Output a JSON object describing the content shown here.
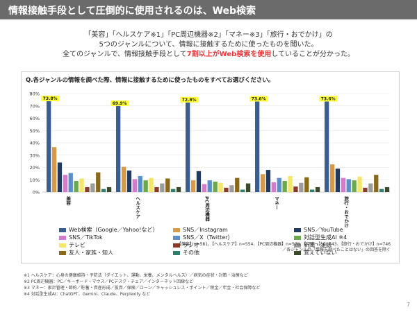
{
  "title": "情報接触手段として圧倒的に使用されるのは、Web検索",
  "intro": {
    "line1": "「美容」「ヘルスケア※1」「PC周辺機器※2」「マネー※3」「旅行・おでかけ」の",
    "line2": "5つのジャンルについて、情報に接触するために使ったものを聞いた。",
    "line3_pre": "全てのジャンルで、情報接触手段として",
    "line3_highlight": "7割以上がWeb検索を使用",
    "line3_post": "していることが分かった。"
  },
  "question": "Q.各ジャンルの情報を調べた際、情報に接触するために使ったものをすべてお選びください。",
  "chart_data": {
    "type": "bar",
    "categories": [
      "美容",
      "ヘルスケア",
      "PC周辺機器",
      "マネー",
      "旅行・おでかけ"
    ],
    "ylim": [
      0,
      80
    ],
    "yticks": [
      "0%",
      "10%",
      "20%",
      "30%",
      "40%",
      "50%",
      "60%",
      "70%",
      "80%"
    ],
    "grid": true,
    "legend_position": "bottom",
    "series": [
      {
        "name": "Web検索（Google／Yahoo!など）",
        "color": "#3a5f8f",
        "values": [
          73.8,
          69.9,
          72.8,
          73.6,
          73.6
        ]
      },
      {
        "name": "SNS／Instagram",
        "color": "#d79a4a",
        "values": [
          36.5,
          20.5,
          9.5,
          14.5,
          22.5
        ]
      },
      {
        "name": "SNS／YouTube",
        "color": "#233a63",
        "values": [
          24,
          17.5,
          17,
          18,
          19
        ]
      },
      {
        "name": "SNS／TikTok",
        "color": "#d67ad0",
        "values": [
          14,
          10.5,
          6.5,
          8,
          11.5
        ]
      },
      {
        "name": "SNS／X（Twitter）",
        "color": "#5b8fc9",
        "values": [
          15.5,
          13,
          9.5,
          11.5,
          10.5
        ]
      },
      {
        "name": "対話型生成AI ※4",
        "color": "#6aaa4a",
        "values": [
          9,
          9.5,
          8.5,
          9,
          9.5
        ]
      },
      {
        "name": "テレビ",
        "color": "#f5e66a",
        "values": [
          11,
          11.5,
          7.5,
          13,
          12.5
        ]
      },
      {
        "name": "ラジオ",
        "color": "#8a3b2a",
        "values": [
          4,
          4,
          3.5,
          4.5,
          3.5
        ]
      },
      {
        "name": "新聞・雑誌",
        "color": "#9c9c9c",
        "values": [
          7,
          7,
          5.5,
          7.5,
          7
        ]
      },
      {
        "name": "友人・家族・知人",
        "color": "#8a6a1a",
        "values": [
          16,
          11,
          11.5,
          12,
          14
        ]
      },
      {
        "name": "その他",
        "color": "#2f7d6d",
        "values": [
          2.5,
          2.5,
          2,
          2,
          2.5
        ]
      },
      {
        "name": "覚えていない",
        "color": "#3a4a2a",
        "values": [
          4,
          4,
          7,
          4,
          4
        ]
      }
    ],
    "data_labels": [
      "73.8%",
      "69.9%",
      "72.8%",
      "73.6%",
      "73.6%"
    ]
  },
  "note_n": {
    "line1": "【美容】n=581、【ヘルスケア】n=554、【PC周辺機器】n=578、【マネー】n=643、【旅行・おでかけ】n=746",
    "line2": "／各ジャンルの「情報を調べたことはない」の回答を除く"
  },
  "footnotes": [
    "※1 ヘルスケア：心身の健康維持・予防法（ダイエット、運動、栄養、メンタルヘルス）／病気の症状・対策・治療など",
    "※2 PC周辺機器：PC／キーボード・マウス／PCデスク・チェア／インターネット回線など",
    "※3 マネー：家計管理・節約／貯蓄・資産形成／投資／保険／ローン／キャッシュレス・ポイント／税金／年金・社会保障など",
    "※4 対話型生成AI：ChatGPT、Gemini、Claude、Perplexity など"
  ],
  "page_number": "7"
}
